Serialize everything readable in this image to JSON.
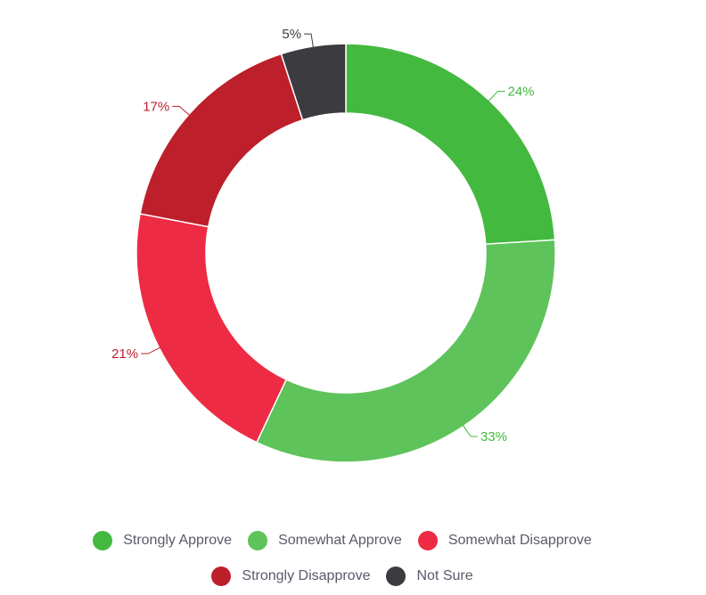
{
  "chart_data": {
    "type": "pie",
    "style": "donut",
    "categories": [
      "Strongly Approve",
      "Somewhat Approve",
      "Somewhat Disapprove",
      "Strongly Disapprove",
      "Not Sure"
    ],
    "values": [
      24,
      33,
      21,
      17,
      5
    ],
    "labels": [
      "24%",
      "33%",
      "21%",
      "17%",
      "5%"
    ],
    "colors": [
      "#44b93f",
      "#5ec35a",
      "#ee2b44",
      "#bd1f2b",
      "#3c3c40"
    ],
    "label_colors": [
      "#44b93f",
      "#44b93f",
      "#bd1f2b",
      "#bd1f2b",
      "#3c3c40"
    ],
    "start": "top",
    "direction": "clockwise",
    "legend_position": "bottom"
  },
  "legend": {
    "row1": [
      {
        "label": "Strongly Approve",
        "color": "#44b93f"
      },
      {
        "label": "Somewhat Approve",
        "color": "#5ec35a"
      },
      {
        "label": "Somewhat Disapprove",
        "color": "#ee2b44"
      }
    ],
    "row2": [
      {
        "label": "Strongly Disapprove",
        "color": "#bd1f2b"
      },
      {
        "label": "Not Sure",
        "color": "#3c3c40"
      }
    ]
  }
}
